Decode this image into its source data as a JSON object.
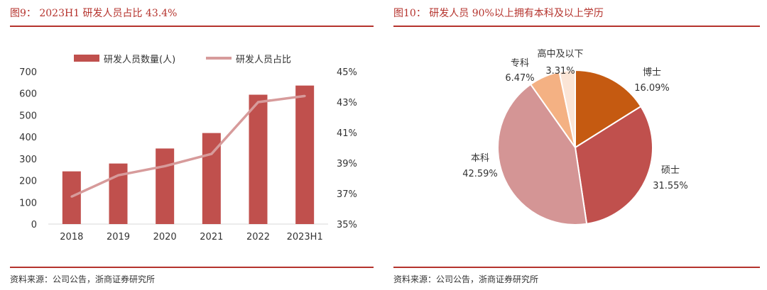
{
  "left": {
    "title": "图9： 2023H1 研发人员占比 43.4%",
    "source": "资料来源：公司公告，浙商证券研究所"
  },
  "right": {
    "title": "图10： 研发人员 90%以上拥有本科及以上学历",
    "source": "资料来源：公司公告，浙商证券研究所"
  },
  "colors": {
    "accent": "#b5332d",
    "bar": "#c0504d",
    "line": "#d79b9b"
  },
  "chart_data": [
    {
      "type": "bar",
      "categories": [
        "2018",
        "2019",
        "2020",
        "2021",
        "2022",
        "2023H1"
      ],
      "series": [
        {
          "name": "研发人员数量(人)",
          "type": "bar",
          "axis": "left",
          "values": [
            242,
            278,
            347,
            418,
            594,
            636
          ]
        },
        {
          "name": "研发人员占比",
          "type": "line",
          "axis": "right",
          "values": [
            36.8,
            38.2,
            38.8,
            39.6,
            43.0,
            43.4
          ]
        }
      ],
      "y_left": {
        "ylim": [
          0,
          700
        ],
        "ticks": [
          "0",
          "100",
          "200",
          "300",
          "400",
          "500",
          "600",
          "700"
        ]
      },
      "y_right": {
        "ylim": [
          35,
          45
        ],
        "ticks": [
          "35%",
          "37%",
          "39%",
          "41%",
          "43%",
          "45%"
        ]
      },
      "legend": "top",
      "grid": false
    },
    {
      "type": "pie",
      "slices": [
        {
          "label": "博士",
          "value": 16.09,
          "text": "16.09%",
          "color": "#c55a11"
        },
        {
          "label": "硕士",
          "value": 31.55,
          "text": "31.55%",
          "color": "#c0504d"
        },
        {
          "label": "本科",
          "value": 42.59,
          "text": "42.59%",
          "color": "#d49595"
        },
        {
          "label": "专科",
          "value": 6.47,
          "text": "6.47%",
          "color": "#f4b183"
        },
        {
          "label": "高中及以下",
          "value": 3.31,
          "text": "3.31%",
          "color": "#fbe5d6"
        }
      ]
    }
  ]
}
